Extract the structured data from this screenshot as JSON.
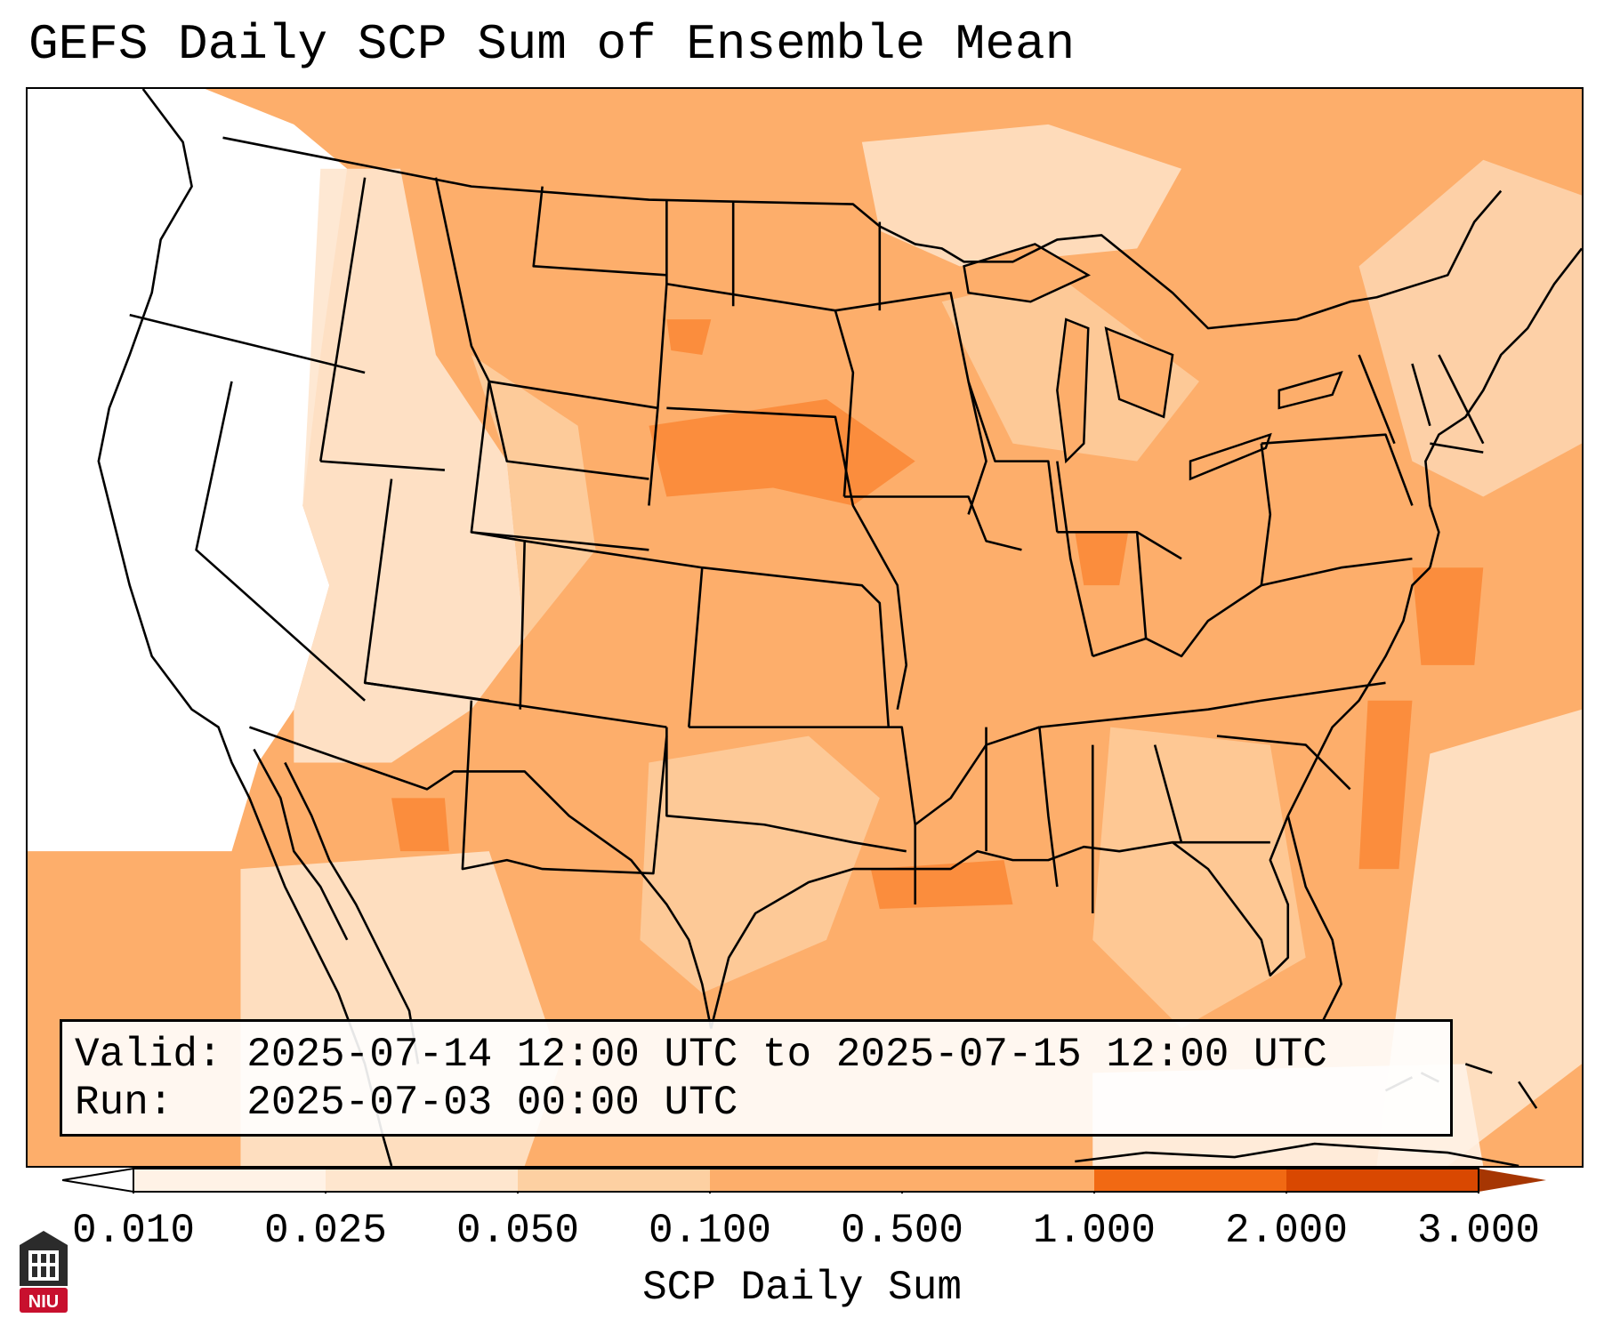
{
  "title": "GEFS Daily SCP Sum of Ensemble Mean",
  "info": {
    "valid_line": "Valid: 2025-07-14 12:00 UTC to 2025-07-15 12:00 UTC",
    "run_line": "Run:   2025-07-03 00:00 UTC"
  },
  "colorbar": {
    "label": "SCP Daily Sum",
    "ticks": [
      "0.010",
      "0.025",
      "0.050",
      "0.100",
      "0.500",
      "1.000",
      "2.000",
      "3.000"
    ],
    "bins": [
      {
        "from": "0.010",
        "to": "0.025",
        "color": "#fff2e6"
      },
      {
        "from": "0.025",
        "to": "0.050",
        "color": "#fee6ce"
      },
      {
        "from": "0.050",
        "to": "0.100",
        "color": "#fdd0a2"
      },
      {
        "from": "0.100",
        "to": "0.500",
        "color": "#fdae6b"
      },
      {
        "from": "0.500",
        "to": "1.000",
        "color": "#fdae6b"
      },
      {
        "from": "1.000",
        "to": "2.000",
        "color": "#f16913"
      },
      {
        "from": "2.000",
        "to": "3.000",
        "color": "#d94801"
      }
    ],
    "under_color": "#ffffff",
    "over_color": "#a63603"
  },
  "logo": {
    "text": "NIU",
    "icon": "university-tower-icon"
  },
  "map": {
    "projection": "lambert-conformal",
    "region": "contiguous-united-states",
    "colors": {
      "white": "#ffffff",
      "lightest": "#fff2e6",
      "light": "#fee6ce",
      "peach": "#fdd0a2",
      "orange": "#fdae6b",
      "dark_orange": "#fb8d3d"
    }
  }
}
